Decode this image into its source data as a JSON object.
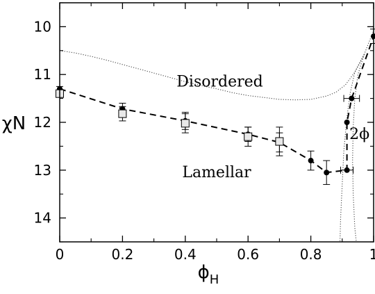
{
  "chart_data": {
    "type": "scatter",
    "xlabel_main": "ϕ",
    "xlabel_sub": "H",
    "ylabel": "χN",
    "xlim": [
      0,
      1
    ],
    "ylim": [
      9.5,
      14.5
    ],
    "y_inverted": true,
    "x_ticks": [
      0,
      0.2,
      0.4,
      0.6,
      0.8,
      1
    ],
    "x_tick_labels": [
      "0",
      "0.2",
      "0.4",
      "0.6",
      "0.8",
      "1"
    ],
    "y_ticks": [
      10,
      11,
      12,
      13,
      14
    ],
    "y_tick_labels": [
      "10",
      "11",
      "12",
      "13",
      "14"
    ],
    "grid": false,
    "annotations": [
      {
        "text": "Disordered",
        "x": 0.51,
        "y": 11.25
      },
      {
        "text": "Lamellar",
        "x": 0.5,
        "y": 13.15
      },
      {
        "text": "2ϕ",
        "x": 0.955,
        "y": 12.35
      }
    ],
    "series": [
      {
        "style": "filled-circle-dashed",
        "points": [
          {
            "x": 0.0,
            "y": 11.3,
            "yerr": 0.05
          },
          {
            "x": 0.2,
            "y": 11.72,
            "yerr": 0.12
          },
          {
            "x": 0.4,
            "y": 11.97,
            "yerr": 0.18
          },
          {
            "x": 0.6,
            "y": 12.25,
            "yerr": 0.15
          },
          {
            "x": 0.7,
            "y": 12.42,
            "yerr": 0.2
          },
          {
            "x": 0.8,
            "y": 12.8,
            "yerr": 0.2
          },
          {
            "x": 0.85,
            "y": 13.05,
            "yerr": 0.25
          },
          {
            "x": 0.915,
            "y": 13.0,
            "xerr": 0.02
          },
          {
            "x": 0.915,
            "y": 12.0
          },
          {
            "x": 0.93,
            "y": 11.5,
            "xerr": 0.025
          },
          {
            "x": 1.0,
            "y": 10.2,
            "yerr": 0.15
          }
        ]
      },
      {
        "style": "open-square",
        "points": [
          {
            "x": 0.0,
            "y": 11.4,
            "yerr": 0.05
          },
          {
            "x": 0.2,
            "y": 11.82,
            "yerr": 0.15
          },
          {
            "x": 0.4,
            "y": 12.02,
            "yerr": 0.2
          },
          {
            "x": 0.6,
            "y": 12.3,
            "yerr": 0.2
          },
          {
            "x": 0.7,
            "y": 12.4,
            "yerr": 0.3
          }
        ]
      },
      {
        "style": "dotted-odt-boundary",
        "x": [
          0,
          0.05,
          0.1,
          0.15,
          0.2,
          0.25,
          0.3,
          0.35,
          0.4,
          0.45,
          0.5,
          0.55,
          0.6,
          0.65,
          0.7,
          0.75,
          0.8,
          0.85,
          0.88,
          0.91,
          0.94,
          0.97,
          1.0
        ],
        "y": [
          10.5,
          10.55,
          10.62,
          10.7,
          10.79,
          10.88,
          10.97,
          11.06,
          11.15,
          11.23,
          11.3,
          11.38,
          11.44,
          11.48,
          11.52,
          11.53,
          11.52,
          11.45,
          11.37,
          11.22,
          10.95,
          10.58,
          10.08
        ]
      },
      {
        "style": "dotted-coexistence-left",
        "x": [
          0.97,
          0.94,
          0.925,
          0.915,
          0.905,
          0.9,
          0.895,
          0.893
        ],
        "y": [
          10.58,
          10.95,
          11.4,
          11.9,
          12.6,
          13.3,
          14.0,
          14.5
        ]
      },
      {
        "style": "dotted-coexistence-right",
        "x": [
          0.97,
          0.95,
          0.94,
          0.935,
          0.933,
          0.935,
          0.94,
          0.945
        ],
        "y": [
          10.58,
          11.0,
          11.5,
          12.1,
          12.8,
          13.5,
          14.2,
          14.5
        ]
      }
    ]
  }
}
